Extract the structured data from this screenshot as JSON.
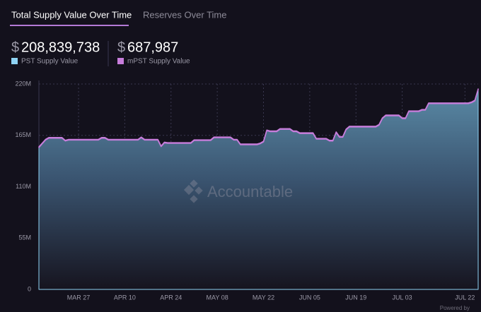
{
  "tabs": [
    "Total Supply Value Over Time",
    "Reserves Over Time"
  ],
  "stats": [
    {
      "currency": "$",
      "value": "208,839,738"
    },
    {
      "currency": "$",
      "value": "687,987"
    }
  ],
  "watermark": "Accountable",
  "footer": "Powered by",
  "chart_data": {
    "type": "area",
    "stacked": true,
    "categories": [
      null,
      null,
      null,
      null,
      null,
      null,
      null,
      null,
      null,
      null,
      null,
      null,
      "MAR 27",
      null,
      null,
      null,
      null,
      null,
      null,
      null,
      null,
      null,
      null,
      null,
      null,
      null,
      "APR 10",
      null,
      null,
      null,
      null,
      null,
      null,
      null,
      null,
      null,
      null,
      null,
      null,
      null,
      "APR 24",
      null,
      null,
      null,
      null,
      null,
      null,
      null,
      null,
      null,
      null,
      null,
      null,
      null,
      "MAY 08",
      null,
      null,
      null,
      null,
      null,
      null,
      null,
      null,
      null,
      null,
      null,
      null,
      null,
      "MAY 22",
      null,
      null,
      null,
      null,
      null,
      null,
      null,
      null,
      null,
      null,
      null,
      null,
      null,
      "JUN 05",
      null,
      null,
      null,
      null,
      null,
      null,
      null,
      null,
      null,
      null,
      null,
      null,
      null,
      "JUN 19",
      null,
      null,
      null,
      null,
      null,
      null,
      null,
      null,
      null,
      null,
      null,
      null,
      null,
      "JUL 03",
      null,
      null,
      null,
      null,
      null,
      null,
      null,
      null,
      null,
      null,
      null,
      null,
      null,
      null,
      null,
      null,
      null,
      null,
      "JUL 22",
      null,
      null,
      null,
      null
    ],
    "series": [
      {
        "name": "PST Supply Value",
        "color": "#8fd3f4",
        "values": [
          152,
          156,
          160,
          162,
          162,
          162,
          162,
          162,
          159,
          160,
          160,
          160,
          160,
          160,
          160,
          160,
          160,
          160,
          160,
          162,
          162,
          160,
          160,
          160,
          160,
          160,
          160,
          160,
          160,
          160,
          160,
          162.5,
          160,
          160,
          160,
          160,
          160,
          153,
          157,
          156.5,
          156.5,
          156.5,
          156.5,
          156.5,
          156.5,
          156.5,
          156.5,
          159.5,
          159.5,
          159.5,
          159.5,
          159.5,
          159.5,
          162.5,
          162.5,
          162.5,
          162.5,
          162.5,
          162.5,
          160,
          160,
          155,
          155,
          155,
          155,
          155,
          155,
          156,
          158,
          170,
          169,
          169,
          169,
          171.5,
          171.5,
          171.5,
          171.5,
          169,
          169,
          167,
          167,
          167,
          167,
          167,
          161,
          161,
          161,
          161,
          159,
          159,
          168,
          163,
          163,
          171,
          174,
          174,
          174,
          174,
          174,
          174,
          174,
          174,
          174,
          176,
          183,
          186,
          186,
          186,
          186,
          186,
          183,
          183,
          190.5,
          190.5,
          190.5,
          190.5,
          192,
          192,
          199,
          199,
          199,
          199,
          199,
          199,
          199,
          199,
          199,
          199,
          199,
          199,
          199,
          200,
          202,
          214
        ]
      },
      {
        "name": "mPST Supply Value",
        "color": "#c77ddb",
        "values": [
          0.7,
          0.7,
          0.7,
          0.7,
          0.7,
          0.7,
          0.7,
          0.7,
          0.7,
          0.7,
          0.7,
          0.7,
          0.7,
          0.7,
          0.7,
          0.7,
          0.7,
          0.7,
          0.7,
          0.7,
          0.7,
          0.7,
          0.7,
          0.7,
          0.7,
          0.7,
          0.7,
          0.7,
          0.7,
          0.7,
          0.7,
          0.7,
          0.7,
          0.7,
          0.7,
          0.7,
          0.7,
          0.7,
          0.7,
          0.7,
          0.7,
          0.7,
          0.7,
          0.7,
          0.7,
          0.7,
          0.7,
          0.7,
          0.7,
          0.7,
          0.7,
          0.7,
          0.7,
          0.7,
          0.7,
          0.7,
          0.7,
          0.7,
          0.7,
          0.7,
          0.7,
          0.7,
          0.7,
          0.7,
          0.7,
          0.7,
          0.7,
          0.7,
          0.7,
          0.7,
          0.7,
          0.7,
          0.7,
          0.7,
          0.7,
          0.7,
          0.7,
          0.7,
          0.7,
          0.7,
          0.7,
          0.7,
          0.7,
          0.7,
          0.7,
          0.7,
          0.7,
          0.7,
          0.7,
          0.7,
          0.7,
          0.7,
          0.7,
          0.7,
          0.7,
          0.7,
          0.7,
          0.7,
          0.7,
          0.7,
          0.7,
          0.7,
          0.7,
          0.7,
          0.7,
          0.7,
          0.7,
          0.7,
          0.7,
          0.7,
          0.7,
          0.7,
          0.7,
          0.7,
          0.7,
          0.7,
          0.7,
          0.7,
          0.7,
          0.7,
          0.7,
          0.7,
          0.7,
          0.7,
          0.7,
          0.7,
          0.7,
          0.7,
          0.7,
          0.7,
          0.7,
          0.7,
          0.7,
          0.7
        ]
      }
    ],
    "ylim": [
      0,
      220
    ],
    "yticks": [
      0,
      {
        "value": 55,
        "label": "55M"
      },
      {
        "value": 110,
        "label": "110M"
      },
      {
        "value": 165,
        "label": "165M"
      },
      {
        "value": 220,
        "label": "220M"
      }
    ],
    "grid": true
  }
}
